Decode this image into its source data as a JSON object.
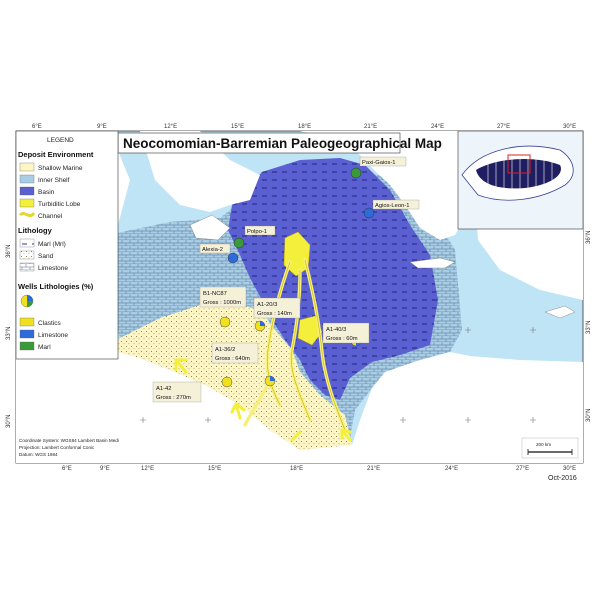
{
  "map": {
    "title": "Neocomomian-Barremian Paleogeographical Map",
    "date": "Oct-2016",
    "scale_bar_label": "200 km",
    "lon_ticks_top": [
      "6°E",
      "9°E",
      "12°E",
      "15°E",
      "18°E",
      "21°E",
      "24°E",
      "27°E",
      "30°E"
    ],
    "lon_ticks_bottom": [
      "6°E",
      "9°E",
      "12°E",
      "15°E",
      "18°E",
      "21°E",
      "24°E",
      "27°E",
      "30°E"
    ],
    "lat_ticks_left": [
      "36°N",
      "33°N",
      "30°N"
    ],
    "lat_ticks_right": [
      "36°N",
      "33°N",
      "30°N"
    ],
    "coordinate_system": [
      "Coordinate System: WGS84 Lambert Basin Medi",
      "Projection: Lambert Conformal Conic",
      "Datum: WGS 1984"
    ],
    "colors": {
      "sea": "#bfe4f5",
      "land": "#ffffff",
      "shallow_marine": "#fdf6c4",
      "inner_shelf": "#a9cde4",
      "basin": "#5a5fd2",
      "turbiditic_lobe": "#f3ef3b",
      "channel": "#f6f07a",
      "clastics": "#f0e020",
      "limestone": "#2e6bd8",
      "marl": "#3a9a3a"
    }
  },
  "legend": {
    "title": "LEGEND",
    "deposit_heading": "Deposit Environment",
    "deposit_items": [
      "Shallow Marine",
      "Inner Shelf",
      "Basin",
      "Turbiditic Lobe",
      "Channel"
    ],
    "lithology_heading": "Lithology",
    "lithology_items": [
      "Marl (Mrl)",
      "Sand",
      "Limestone"
    ],
    "wells_heading": "Wells Lithologies (%)",
    "wells_items": [
      "Clastics",
      "Limestone",
      "Marl"
    ]
  },
  "wells": [
    {
      "name": "Paxi-Gaios-1",
      "lithology": "Marl"
    },
    {
      "name": "Agios-Leon-1",
      "lithology": "Limestone"
    },
    {
      "name": "Polpo-1",
      "lithology": "Marl"
    },
    {
      "name": "Alexia-2",
      "lithology": "Limestone"
    },
    {
      "name": "B1-NC87",
      "gross": "Gross : 1000m"
    },
    {
      "name": "A1-20/3",
      "gross": "Gross : 140m"
    },
    {
      "name": "A1-40/3",
      "gross": "Gross : 60m"
    },
    {
      "name": "A1-36/2",
      "gross": "Gross : 640m"
    },
    {
      "name": "A1-42",
      "gross": "Gross : 270m"
    }
  ]
}
